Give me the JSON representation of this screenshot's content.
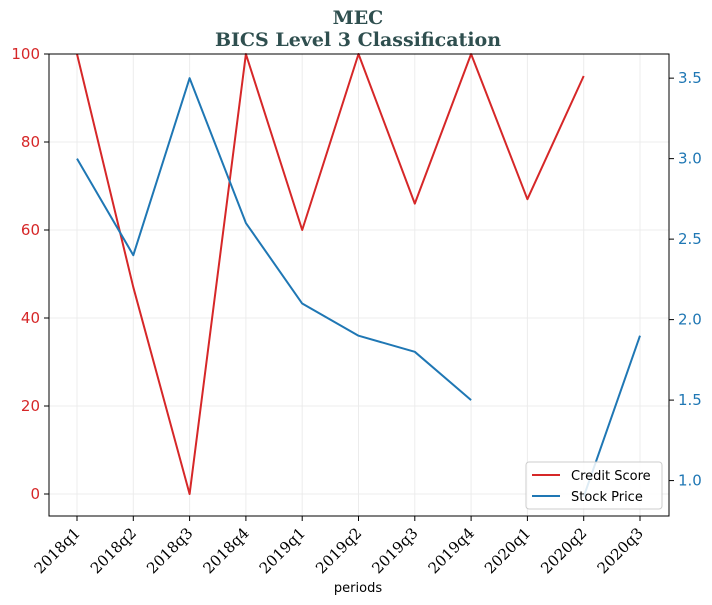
{
  "chart_data": {
    "type": "line",
    "title": "MEC",
    "subtitle": "BICS Level 3 Classification",
    "xlabel": "periods",
    "ylabel_left": "",
    "ylabel_right": "",
    "categories": [
      "2018q1",
      "2018q2",
      "2018q3",
      "2018q4",
      "2019q1",
      "2019q2",
      "2019q3",
      "2019q4",
      "2020q1",
      "2020q2",
      "2020q3"
    ],
    "ylim_left": [
      -5,
      100
    ],
    "yticks_left": [
      0,
      20,
      40,
      60,
      80,
      100
    ],
    "ylim_right": [
      0.78,
      3.65
    ],
    "yticks_right": [
      1.0,
      1.5,
      2.0,
      2.5,
      3.0,
      3.5
    ],
    "grid": true,
    "legend": "lower-right",
    "series": [
      {
        "name": "Credit Score",
        "axis": "left",
        "color": "#d62728",
        "values": [
          100,
          47,
          0,
          100,
          60,
          100,
          66,
          100,
          67,
          95,
          null
        ]
      },
      {
        "name": "Stock Price",
        "axis": "right",
        "color": "#1f77b4",
        "values": [
          3.0,
          2.4,
          3.5,
          2.6,
          2.1,
          1.9,
          1.8,
          1.5,
          null,
          0.9,
          1.9
        ]
      }
    ]
  }
}
